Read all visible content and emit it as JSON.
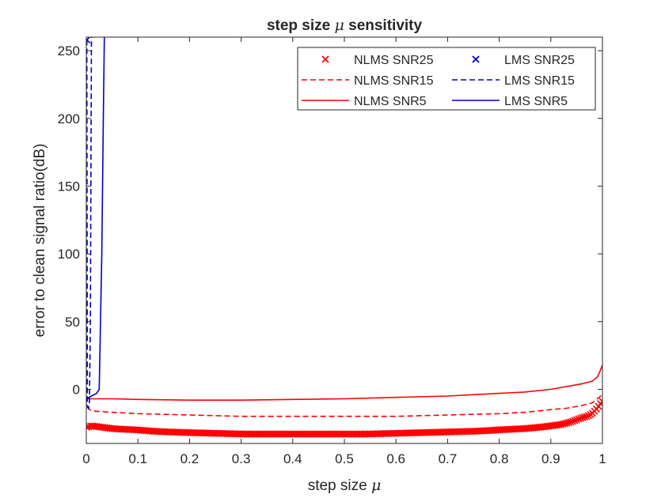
{
  "chart_data": {
    "type": "line",
    "title": "step size μ sensitivity",
    "xlabel": "step size μ",
    "ylabel": "error to clean signal ratio(dB)",
    "xlim": [
      0,
      1
    ],
    "ylim": [
      -40,
      260
    ],
    "xticks": [
      0,
      0.1,
      0.2,
      0.3,
      0.4,
      0.5,
      0.6,
      0.7,
      0.8,
      0.9,
      1
    ],
    "yticks": [
      0,
      50,
      100,
      150,
      200,
      250
    ],
    "xtick_labels": [
      "0",
      "0.1",
      "0.2",
      "0.3",
      "0.4",
      "0.5",
      "0.6",
      "0.7",
      "0.8",
      "0.9",
      "1"
    ],
    "ytick_labels": [
      "0",
      "50",
      "100",
      "150",
      "200",
      "250"
    ],
    "grid": false,
    "legend_position": "top-right",
    "legend_columns": 2,
    "series": [
      {
        "name": "NLMS SNR25",
        "color": "#ff0000",
        "line_style": "none",
        "marker": "x",
        "points": [
          [
            0.001,
            -28
          ],
          [
            0.01,
            -27
          ],
          [
            0.02,
            -27.5
          ],
          [
            0.03,
            -28
          ],
          [
            0.05,
            -29
          ],
          [
            0.07,
            -29.5
          ],
          [
            0.1,
            -30
          ],
          [
            0.13,
            -31
          ],
          [
            0.16,
            -31.5
          ],
          [
            0.2,
            -32
          ],
          [
            0.25,
            -32.5
          ],
          [
            0.3,
            -33
          ],
          [
            0.35,
            -33
          ],
          [
            0.4,
            -33
          ],
          [
            0.45,
            -33
          ],
          [
            0.5,
            -33
          ],
          [
            0.55,
            -33
          ],
          [
            0.6,
            -32.5
          ],
          [
            0.65,
            -32
          ],
          [
            0.7,
            -31.5
          ],
          [
            0.75,
            -31
          ],
          [
            0.8,
            -30
          ],
          [
            0.85,
            -29
          ],
          [
            0.88,
            -28
          ],
          [
            0.9,
            -27
          ],
          [
            0.92,
            -26
          ],
          [
            0.94,
            -24
          ],
          [
            0.96,
            -21
          ],
          [
            0.97,
            -20
          ],
          [
            0.98,
            -18
          ],
          [
            0.99,
            -14
          ],
          [
            0.995,
            -11
          ],
          [
            1.0,
            -9
          ]
        ]
      },
      {
        "name": "NLMS SNR15",
        "color": "#ff0000",
        "line_style": "dashed",
        "marker": "none",
        "points": [
          [
            0.001,
            -13
          ],
          [
            0.01,
            -16
          ],
          [
            0.05,
            -17
          ],
          [
            0.1,
            -18
          ],
          [
            0.2,
            -19
          ],
          [
            0.3,
            -20
          ],
          [
            0.4,
            -20
          ],
          [
            0.5,
            -20
          ],
          [
            0.6,
            -20
          ],
          [
            0.7,
            -19
          ],
          [
            0.8,
            -18
          ],
          [
            0.85,
            -17
          ],
          [
            0.9,
            -15
          ],
          [
            0.93,
            -14
          ],
          [
            0.96,
            -12
          ],
          [
            0.98,
            -10
          ],
          [
            0.99,
            -7
          ],
          [
            1.0,
            -4
          ]
        ]
      },
      {
        "name": "NLMS SNR5",
        "color": "#ff0000",
        "line_style": "solid",
        "marker": "none",
        "points": [
          [
            0.001,
            -7
          ],
          [
            0.01,
            -7
          ],
          [
            0.05,
            -7
          ],
          [
            0.1,
            -7.5
          ],
          [
            0.2,
            -8
          ],
          [
            0.3,
            -8
          ],
          [
            0.4,
            -7.5
          ],
          [
            0.5,
            -7
          ],
          [
            0.6,
            -6
          ],
          [
            0.7,
            -5
          ],
          [
            0.8,
            -3
          ],
          [
            0.85,
            -2
          ],
          [
            0.9,
            0
          ],
          [
            0.93,
            2
          ],
          [
            0.96,
            4
          ],
          [
            0.98,
            6
          ],
          [
            0.99,
            9
          ],
          [
            0.995,
            13
          ],
          [
            1.0,
            18
          ]
        ]
      },
      {
        "name": "LMS SNR25",
        "color": "#0000cc",
        "line_style": "none",
        "marker": "x",
        "points": [
          [
            0.001,
            258
          ]
        ]
      },
      {
        "name": "LMS SNR15",
        "color": "#0000cc",
        "line_style": "dashed",
        "marker": "none",
        "points": [
          [
            0.001,
            258
          ],
          [
            0.002,
            -12
          ],
          [
            0.004,
            -14
          ],
          [
            0.006,
            -12
          ],
          [
            0.008,
            50
          ],
          [
            0.01,
            260
          ]
        ]
      },
      {
        "name": "LMS SNR5",
        "color": "#0000cc",
        "line_style": "solid",
        "marker": "none",
        "points": [
          [
            0.001,
            -7
          ],
          [
            0.005,
            -6
          ],
          [
            0.01,
            -5
          ],
          [
            0.015,
            -4
          ],
          [
            0.02,
            -3
          ],
          [
            0.025,
            0
          ],
          [
            0.03,
            100
          ],
          [
            0.033,
            200
          ],
          [
            0.035,
            260
          ]
        ]
      }
    ]
  }
}
